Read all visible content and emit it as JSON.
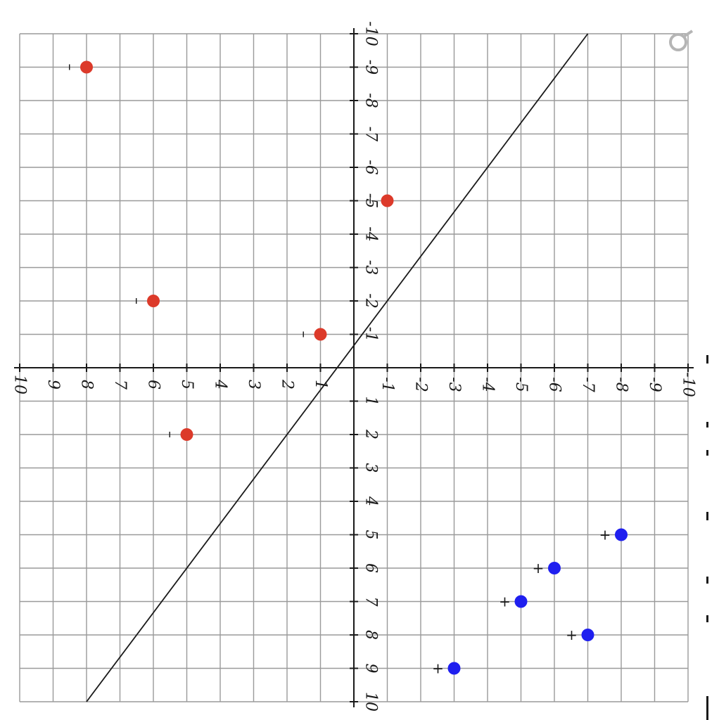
{
  "chart_data": {
    "type": "scatter",
    "title": "",
    "xlabel": "",
    "ylabel": "",
    "orientation": "rotated 90 degrees clockwise (x axis runs top-to-bottom, y axis runs right-to-left)",
    "xlim": [
      -10,
      10
    ],
    "ylim": [
      -10,
      10
    ],
    "grid": true,
    "x_ticks": [
      -10,
      -9,
      -8,
      -7,
      -6,
      -5,
      -4,
      -3,
      -2,
      -1,
      1,
      2,
      3,
      4,
      5,
      6,
      7,
      8,
      9,
      10
    ],
    "y_ticks": [
      -10,
      -9,
      -8,
      -7,
      -6,
      -5,
      -4,
      -3,
      -2,
      -1,
      1,
      2,
      3,
      4,
      5,
      6,
      7,
      8,
      9,
      10
    ],
    "series": [
      {
        "label_mark": "+",
        "color": "#1f1fef",
        "points": [
          [
            9,
            -3
          ],
          [
            8,
            -7
          ],
          [
            7,
            -5
          ],
          [
            6,
            -6
          ],
          [
            5,
            -8
          ]
        ]
      },
      {
        "label_mark": "-",
        "color": "#dc3a2a",
        "points": [
          [
            2,
            5
          ],
          [
            -1,
            1
          ],
          [
            -2,
            6
          ],
          [
            -5,
            -1
          ],
          [
            -9,
            8
          ]
        ]
      }
    ],
    "line": {
      "color": "#1a1a1a",
      "points": [
        [
          10,
          8
        ],
        [
          -10,
          -7
        ]
      ]
    }
  },
  "icons": {
    "settings": "settings-icon"
  }
}
